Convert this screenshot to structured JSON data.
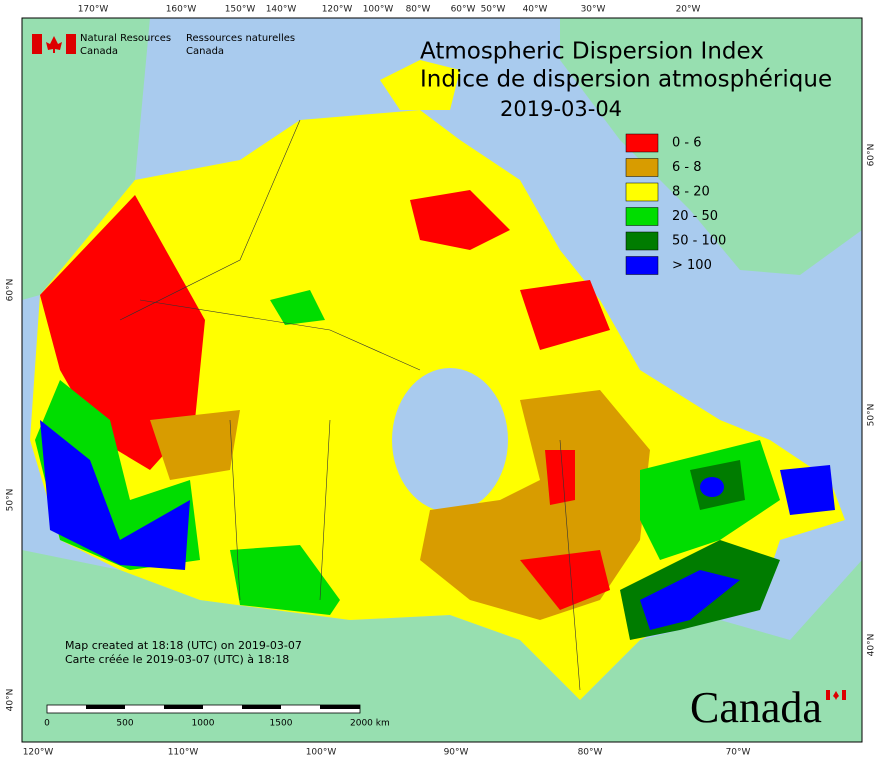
{
  "header": {
    "agency_en": [
      "Natural Resources",
      "Canada"
    ],
    "agency_fr": [
      "Ressources naturelles",
      "Canada"
    ]
  },
  "title": [
    "Atmospheric Dispersion Index",
    "Indice de dispersion atmosphérique"
  ],
  "date": "2019-03-04",
  "legend": [
    {
      "label": "0 - 6",
      "color": "#ff0000"
    },
    {
      "label": "6 - 8",
      "color": "#d89c00"
    },
    {
      "label": "8 - 20",
      "color": "#ffff00"
    },
    {
      "label": "20 - 50",
      "color": "#00dd00"
    },
    {
      "label": "50 - 100",
      "color": "#007c00"
    },
    {
      "label": "> 100",
      "color": "#0000ff"
    }
  ],
  "graticule": {
    "top": [
      "170°W",
      "160°W",
      "150°W",
      "140°W",
      "120°W",
      "100°W",
      "80°W",
      "60°W",
      "50°W",
      "40°W",
      "30°W",
      "20°W"
    ],
    "bottom": [
      "120°W",
      "110°W",
      "100°W",
      "90°W",
      "80°W",
      "70°W"
    ],
    "left": [
      "60°N",
      "50°N",
      "40°N"
    ],
    "right": [
      "60°N",
      "50°N",
      "40°N"
    ]
  },
  "credits": [
    "Map created at 18:18 (UTC) on 2019-03-07",
    "Carte créée le 2019-03-07 (UTC) à 18:18"
  ],
  "scale_bar": [
    "0",
    "500",
    "1000",
    "1500",
    "2000 km"
  ],
  "wordmark": "Canada"
}
